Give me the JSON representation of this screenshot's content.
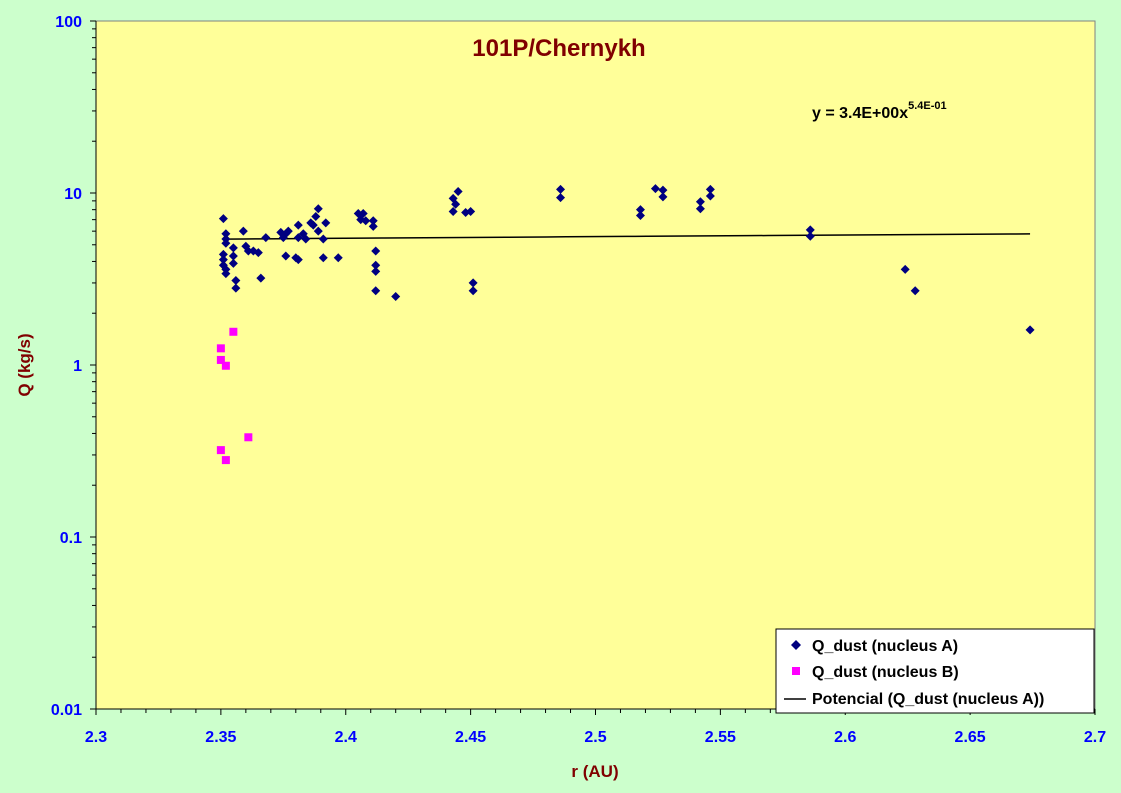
{
  "chart_data": {
    "type": "scatter",
    "title": "101P/Chernykh",
    "xlabel": "r (AU)",
    "ylabel": "Q (kg/s)",
    "xlim": [
      2.3,
      2.7
    ],
    "ylim": [
      0.01,
      100
    ],
    "yscale": "log",
    "x_ticks": [
      "2.3",
      "2.35",
      "2.4",
      "2.45",
      "2.5",
      "2.55",
      "2.6",
      "2.65",
      "2.7"
    ],
    "y_ticks": [
      "0.01",
      "0.1",
      "1",
      "10",
      "100"
    ],
    "grid": false,
    "legend_position": "bottom-right",
    "background": "#ffff99",
    "page_background": "#ccffcc",
    "series": [
      {
        "name": "Q_dust (nucleus A)",
        "marker": "diamond",
        "color": "#000080",
        "points": [
          [
            2.351,
            7.1
          ],
          [
            2.351,
            4.4
          ],
          [
            2.351,
            4.1
          ],
          [
            2.351,
            3.8
          ],
          [
            2.352,
            5.8
          ],
          [
            2.352,
            5.4
          ],
          [
            2.352,
            5.1
          ],
          [
            2.352,
            3.6
          ],
          [
            2.352,
            3.4
          ],
          [
            2.355,
            4.8
          ],
          [
            2.355,
            4.3
          ],
          [
            2.355,
            3.9
          ],
          [
            2.356,
            3.1
          ],
          [
            2.356,
            2.8
          ],
          [
            2.359,
            6.0
          ],
          [
            2.36,
            4.9
          ],
          [
            2.361,
            4.6
          ],
          [
            2.363,
            4.6
          ],
          [
            2.365,
            4.5
          ],
          [
            2.366,
            3.2
          ],
          [
            2.368,
            5.5
          ],
          [
            2.374,
            5.9
          ],
          [
            2.375,
            5.5
          ],
          [
            2.376,
            5.8
          ],
          [
            2.376,
            4.3
          ],
          [
            2.377,
            6.0
          ],
          [
            2.38,
            4.2
          ],
          [
            2.381,
            6.5
          ],
          [
            2.381,
            4.1
          ],
          [
            2.381,
            5.5
          ],
          [
            2.383,
            5.8
          ],
          [
            2.384,
            5.4
          ],
          [
            2.386,
            6.7
          ],
          [
            2.387,
            6.5
          ],
          [
            2.388,
            7.3
          ],
          [
            2.389,
            8.1
          ],
          [
            2.389,
            6.0
          ],
          [
            2.391,
            5.4
          ],
          [
            2.391,
            4.2
          ],
          [
            2.392,
            6.7
          ],
          [
            2.397,
            4.2
          ],
          [
            2.405,
            7.6
          ],
          [
            2.406,
            7.0
          ],
          [
            2.407,
            7.6
          ],
          [
            2.408,
            6.9
          ],
          [
            2.411,
            6.9
          ],
          [
            2.411,
            6.4
          ],
          [
            2.412,
            4.6
          ],
          [
            2.412,
            3.8
          ],
          [
            2.412,
            3.5
          ],
          [
            2.412,
            2.7
          ],
          [
            2.42,
            2.5
          ],
          [
            2.443,
            9.3
          ],
          [
            2.443,
            7.8
          ],
          [
            2.444,
            8.6
          ],
          [
            2.445,
            10.2
          ],
          [
            2.448,
            7.7
          ],
          [
            2.45,
            7.8
          ],
          [
            2.451,
            3.0
          ],
          [
            2.451,
            2.7
          ],
          [
            2.486,
            10.5
          ],
          [
            2.486,
            9.4
          ],
          [
            2.518,
            8.0
          ],
          [
            2.518,
            7.4
          ],
          [
            2.524,
            10.6
          ],
          [
            2.527,
            10.4
          ],
          [
            2.527,
            9.5
          ],
          [
            2.542,
            8.1
          ],
          [
            2.542,
            8.9
          ],
          [
            2.546,
            10.5
          ],
          [
            2.546,
            9.6
          ],
          [
            2.586,
            6.1
          ],
          [
            2.586,
            5.6
          ],
          [
            2.624,
            3.6
          ],
          [
            2.628,
            2.7
          ],
          [
            2.674,
            1.6
          ]
        ]
      },
      {
        "name": "Q_dust (nucleus B)",
        "marker": "square",
        "color": "#ff00ff",
        "points": [
          [
            2.35,
            1.25
          ],
          [
            2.35,
            1.07
          ],
          [
            2.352,
            0.99
          ],
          [
            2.355,
            1.56
          ],
          [
            2.35,
            0.32
          ],
          [
            2.352,
            0.28
          ],
          [
            2.361,
            0.38
          ]
        ]
      },
      {
        "name": "Potencial (Q_dust (nucleus A))",
        "type": "line",
        "color": "#000000",
        "fit": {
          "coefficient": 3.4,
          "exponent": 0.54,
          "x_range": [
            2.351,
            2.674
          ]
        }
      }
    ],
    "annotations": [
      {
        "text": "y = 3.4E+00x",
        "superscript": "5.4E-01"
      }
    ]
  }
}
